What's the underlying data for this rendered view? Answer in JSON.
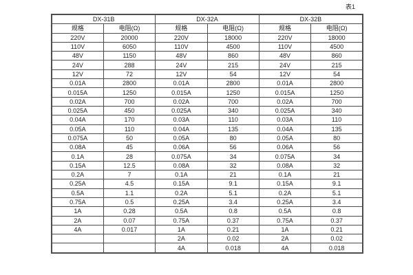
{
  "page": {
    "label": "表1"
  },
  "colors": {
    "background": "#ffffff",
    "border": "#4d4d4d",
    "text": "#1f1f1f"
  },
  "table": {
    "groups": [
      {
        "name": "DX-31B",
        "columns": [
          "规格",
          "电阻(Ω)"
        ],
        "rows": [
          [
            "220V",
            "20000"
          ],
          [
            "110V",
            "6050"
          ],
          [
            "48V",
            "1150"
          ],
          [
            "24V",
            "288"
          ],
          [
            "12V",
            "72"
          ],
          [
            "0.01A",
            "2800"
          ],
          [
            "0.015A",
            "1250"
          ],
          [
            "0.02A",
            "700"
          ],
          [
            "0.025A",
            "450"
          ],
          [
            "0.04A",
            "170"
          ],
          [
            "0.05A",
            "110"
          ],
          [
            "0.075A",
            "50"
          ],
          [
            "0.08A",
            "45"
          ],
          [
            "0.1A",
            "28"
          ],
          [
            "0.15A",
            "12.5"
          ],
          [
            "0.2A",
            "7"
          ],
          [
            "0.25A",
            "4.5"
          ],
          [
            "0.5A",
            "1.1"
          ],
          [
            "0.75A",
            "0.5"
          ],
          [
            "1A",
            "0.28"
          ],
          [
            "2A",
            "0.07"
          ],
          [
            "4A",
            "0.017"
          ],
          [
            "",
            ""
          ],
          [
            "",
            ""
          ]
        ]
      },
      {
        "name": "DX-32A",
        "columns": [
          "规格",
          "电阻(Ω)"
        ],
        "rows": [
          [
            "220V",
            "18000"
          ],
          [
            "110V",
            "4500"
          ],
          [
            "48V",
            "860"
          ],
          [
            "24V",
            "215"
          ],
          [
            "12V",
            "54"
          ],
          [
            "0.01A",
            "2800"
          ],
          [
            "0.015A",
            "1250"
          ],
          [
            "0.02A",
            "700"
          ],
          [
            "0.025A",
            "340"
          ],
          [
            "0.03A",
            "110"
          ],
          [
            "0.04A",
            "135"
          ],
          [
            "0.05A",
            "80"
          ],
          [
            "0.06A",
            "56"
          ],
          [
            "0.075A",
            "34"
          ],
          [
            "0.08A",
            "32"
          ],
          [
            "0.1A",
            "21"
          ],
          [
            "0.15A",
            "9.1"
          ],
          [
            "0.2A",
            "5.1"
          ],
          [
            "0.25A",
            "3.4"
          ],
          [
            "0.5A",
            "0.8"
          ],
          [
            "0.75A",
            "0.37"
          ],
          [
            "1A",
            "0.21"
          ],
          [
            "2A",
            "0.02"
          ],
          [
            "4A",
            "0.018"
          ]
        ]
      },
      {
        "name": "DX-32B",
        "columns": [
          "规格",
          "电阻(Ω)"
        ],
        "rows": [
          [
            "220V",
            "18000"
          ],
          [
            "110V",
            "4500"
          ],
          [
            "48V",
            "860"
          ],
          [
            "24V",
            "215"
          ],
          [
            "12V",
            "54"
          ],
          [
            "0.01A",
            "2800"
          ],
          [
            "0.015A",
            "1250"
          ],
          [
            "0.02A",
            "700"
          ],
          [
            "0.025A",
            "340"
          ],
          [
            "0.03A",
            "110"
          ],
          [
            "0.04A",
            "135"
          ],
          [
            "0.05A",
            "80"
          ],
          [
            "0.06A",
            "56"
          ],
          [
            "0.075A",
            "34"
          ],
          [
            "0.08A",
            "32"
          ],
          [
            "0.1A",
            "21"
          ],
          [
            "0.15A",
            "9.1"
          ],
          [
            "0.2A",
            "5.1"
          ],
          [
            "0.25A",
            "3.4"
          ],
          [
            "0.5A",
            "0.8"
          ],
          [
            "0.75A",
            "0.37"
          ],
          [
            "1A",
            "0.21"
          ],
          [
            "2A",
            "0.02"
          ],
          [
            "4A",
            "0.018"
          ]
        ]
      }
    ]
  }
}
